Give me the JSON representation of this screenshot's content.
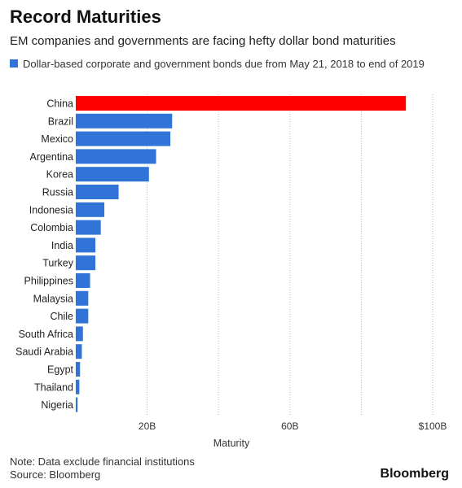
{
  "chart_data": {
    "type": "bar",
    "orientation": "horizontal",
    "title": "Record Maturities",
    "subtitle": "EM companies and governments are facing hefty dollar bond maturities",
    "legend": [
      {
        "label": "Dollar-based corporate and government bonds due from May 21, 2018 to end of 2019",
        "color": "#2f74d6"
      }
    ],
    "categories": [
      "China",
      "Brazil",
      "Mexico",
      "Argentina",
      "Korea",
      "Russia",
      "Indonesia",
      "Colombia",
      "India",
      "Turkey",
      "Philippines",
      "Malaysia",
      "Chile",
      "South Africa",
      "Saudi Arabia",
      "Egypt",
      "Thailand",
      "Nigeria"
    ],
    "values": [
      92.5,
      27,
      26.5,
      22.5,
      20.5,
      12,
      8,
      7,
      5.5,
      5.5,
      4,
      3.5,
      3.5,
      2,
      1.7,
      1.2,
      1,
      0.5
    ],
    "highlight": {
      "category": "China",
      "color": "#ff0000"
    },
    "bar_color": "#2f74d6",
    "xlabel": "Maturity",
    "ylabel": "",
    "xlim": [
      0,
      100
    ],
    "x_ticks": [
      {
        "value": 20,
        "label": "20B"
      },
      {
        "value": 60,
        "label": "60B"
      },
      {
        "value": 100,
        "label": "$100B"
      }
    ],
    "gridlines": [
      20,
      40,
      60,
      80,
      100
    ],
    "grid": true,
    "legend_position": "top-left"
  },
  "footer": {
    "note": "Note: Data exclude financial institutions",
    "source": "Source: Bloomberg",
    "brand": "Bloomberg"
  }
}
